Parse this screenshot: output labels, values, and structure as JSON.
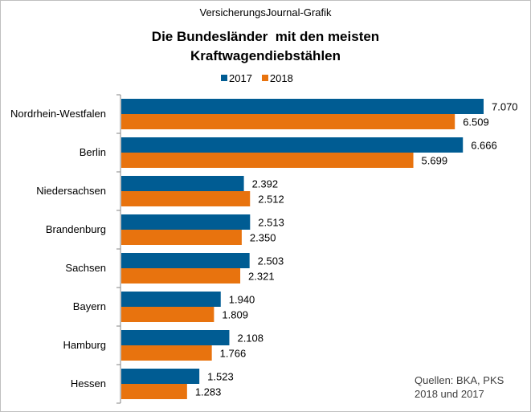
{
  "header": {
    "source_label": "VersicherungsJournal-Grafik",
    "title_line1": "Die Bundesländer  mit den meisten",
    "title_line2": "Kraftwagendiebstählen"
  },
  "legend": {
    "series_2017": "2017",
    "series_2018": "2018"
  },
  "colors": {
    "series_2017": "#005c93",
    "series_2018": "#e8730e"
  },
  "credit": {
    "line1": "Quellen: BKA, PKS",
    "line2": "2018 und 2017"
  },
  "chart_data": {
    "type": "bar",
    "orientation": "horizontal",
    "title": "Die Bundesländer  mit den meisten Kraftwagendiebstählen",
    "categories": [
      "Nordrhein-Westfalen",
      "Berlin",
      "Niedersachsen",
      "Brandenburg",
      "Sachsen",
      "Bayern",
      "Hamburg",
      "Hessen"
    ],
    "series": [
      {
        "name": "2017",
        "values": [
          7070,
          6666,
          2392,
          2513,
          2503,
          1940,
          2108,
          1523
        ],
        "labels": [
          "7.070",
          "6.666",
          "2.392",
          "2.513",
          "2.503",
          "1.940",
          "2.108",
          "1.523"
        ]
      },
      {
        "name": "2018",
        "values": [
          6509,
          5699,
          2512,
          2350,
          2321,
          1809,
          1766,
          1283
        ],
        "labels": [
          "6.509",
          "5.699",
          "2.512",
          "2.350",
          "2.321",
          "1.809",
          "1.766",
          "1.283"
        ]
      }
    ],
    "xlabel": "",
    "ylabel": "",
    "xlim": [
      0,
      7500
    ],
    "grid": false,
    "legend_position": "top"
  }
}
